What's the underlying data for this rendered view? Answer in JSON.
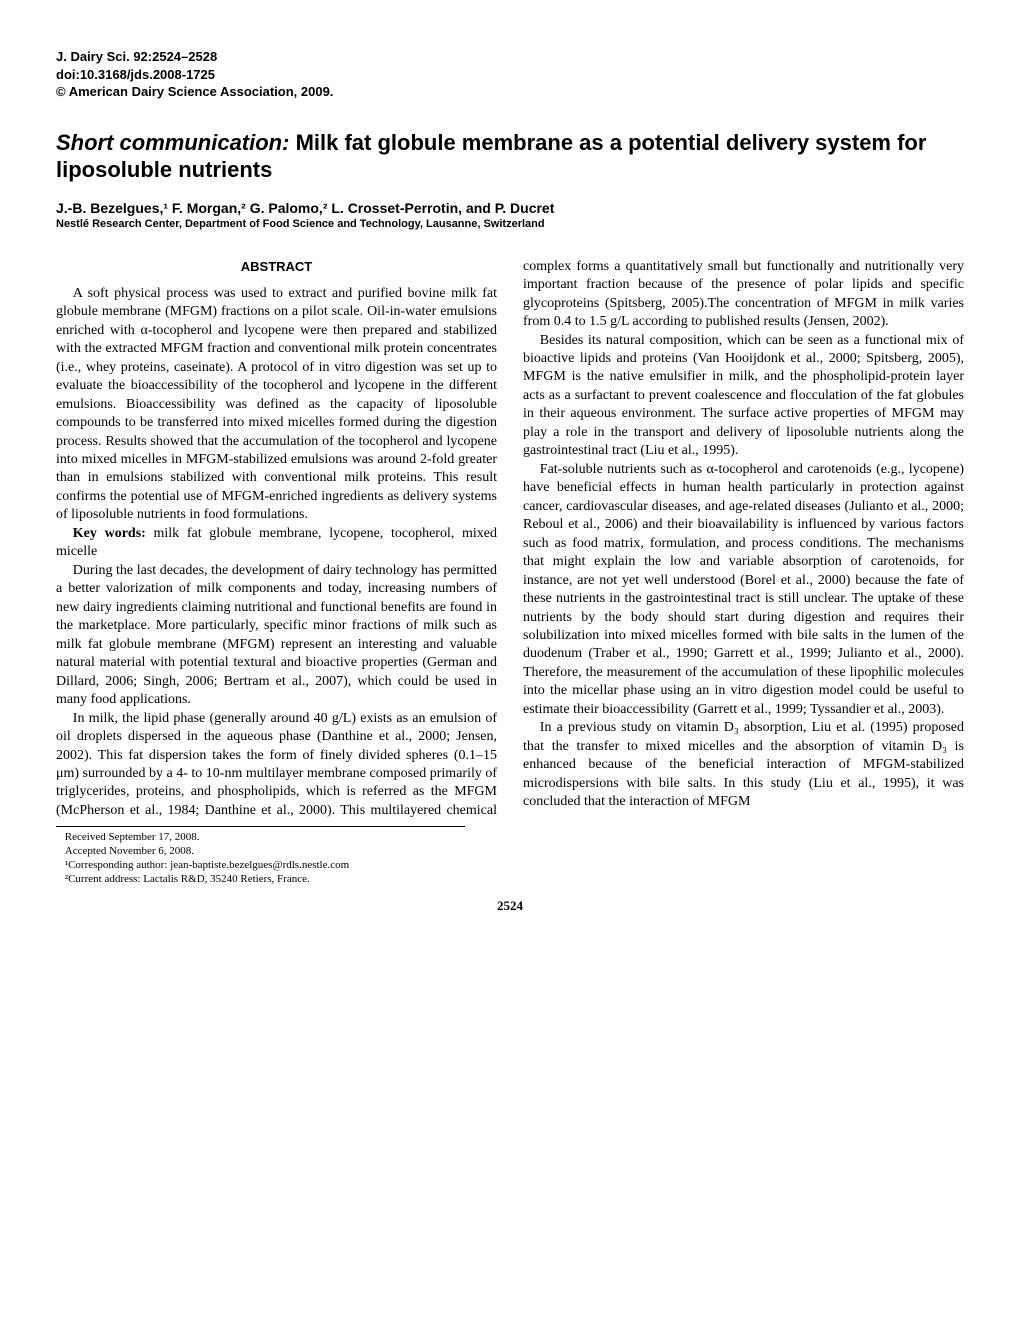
{
  "journal": {
    "citation": "J. Dairy Sci. 92:2524–2528",
    "doi": "doi:10.3168/jds.2008-1725",
    "copyright": "© American Dairy Science Association, 2009."
  },
  "title": {
    "prefix": "Short communication:",
    "main": "Milk fat globule membrane as a potential delivery system for liposoluble nutrients"
  },
  "authors": "J.-B. Bezelgues,¹ F. Morgan,² G. Palomo,² L. Crosset-Perrotin, and P. Ducret",
  "affiliation": "Nestlé Research Center, Department of Food Science and Technology, Lausanne, Switzerland",
  "abstract": {
    "heading": "ABSTRACT",
    "body": "A soft physical process was used to extract and purified bovine milk fat globule membrane (MFGM) fractions on a pilot scale. Oil-in-water emulsions enriched with α-tocopherol and lycopene were then prepared and stabilized with the extracted MFGM fraction and conventional milk protein concentrates (i.e., whey proteins, caseinate). A protocol of in vitro digestion was set up to evaluate the bioaccessibility of the tocopherol and lycopene in the different emulsions. Bioaccessibility was defined as the capacity of liposoluble compounds to be transferred into mixed micelles formed during the digestion process. Results showed that the accumulation of the tocopherol and lycopene into mixed micelles in MFGM-stabilized emulsions was around 2-fold greater than in emulsions stabilized with conventional milk proteins. This result confirms the potential use of MFGM-enriched ingredients as delivery systems of liposoluble nutrients in food formulations."
  },
  "keywords": {
    "label": "Key words:",
    "text": "milk fat globule membrane, lycopene, tocopherol, mixed micelle"
  },
  "body": {
    "p1": "During the last decades, the development of dairy technology has permitted a better valorization of milk components and today, increasing numbers of new dairy ingredients claiming nutritional and functional benefits are found in the marketplace. More particularly, specific minor fractions of milk such as milk fat globule membrane (MFGM) represent an interesting and valuable natural material with potential textural and bioactive properties (German and Dillard, 2006; Singh, 2006; Bertram et al., 2007), which could be used in many food applications.",
    "p2": "In milk, the lipid phase (generally around 40 g/L) exists as an emulsion of oil droplets dispersed in the aqueous phase (Danthine et al., 2000; Jensen, 2002). This fat dispersion takes the form of finely divided spheres (0.1–15 μm) surrounded by a 4- to 10-nm multilayer membrane composed primarily of triglycerides, proteins, and phospholipids, which is referred as the MFGM (McPherson et al., 1984; Danthine et al., 2000). This multilayered chemical complex forms a quantitatively small but functionally and nutritionally very important fraction because of the presence of polar lipids and specific glycoproteins (Spitsberg, 2005).The concentration of MFGM in milk varies from 0.4 to 1.5 g/L according to published results (Jensen, 2002).",
    "p3": "Besides its natural composition, which can be seen as a functional mix of bioactive lipids and proteins (Van Hooijdonk et al., 2000; Spitsberg, 2005), MFGM is the native emulsifier in milk, and the phospholipid-protein layer acts as a surfactant to prevent coalescence and flocculation of the fat globules in their aqueous environment. The surface active properties of MFGM may play a role in the transport and delivery of liposoluble nutrients along the gastrointestinal tract (Liu et al., 1995).",
    "p4": "Fat-soluble nutrients such as α-tocopherol and carotenoids (e.g., lycopene) have beneficial effects in human health particularly in protection against cancer, cardiovascular diseases, and age-related diseases (Julianto et al., 2000; Reboul et al., 2006) and their bioavailability is influenced by various factors such as food matrix, formulation, and process conditions. The mechanisms that might explain the low and variable absorption of carotenoids, for instance, are not yet well understood (Borel et al., 2000) because the fate of these nutrients in the gastrointestinal tract is still unclear. The uptake of these nutrients by the body should start during digestion and requires their solubilization into mixed micelles formed with bile salts in the lumen of the duodenum (Traber et al., 1990; Garrett et al., 1999; Julianto et al., 2000). Therefore, the measurement of the accumulation of these lipophilic molecules into the micellar phase using an in vitro digestion model could be useful to estimate their bioaccessibility (Garrett et al., 1999; Tyssandier et al., 2003).",
    "p5": "In a previous study on vitamin D₃ absorption, Liu et al. (1995) proposed that the transfer to mixed micelles and the absorption of vitamin D₃ is enhanced because of the beneficial interaction of MFGM-stabilized microdispersions with bile salts. In this study (Liu et al., 1995), it was concluded that the interaction of MFGM"
  },
  "footnotes": {
    "received": "Received September 17, 2008.",
    "accepted": "Accepted November 6, 2008.",
    "f1": "¹Corresponding author: jean-baptiste.bezelgues@rdls.nestle.com",
    "f2": "²Current address: Lactalis R&D, 35240 Retiers, France."
  },
  "pageNumber": "2524"
}
